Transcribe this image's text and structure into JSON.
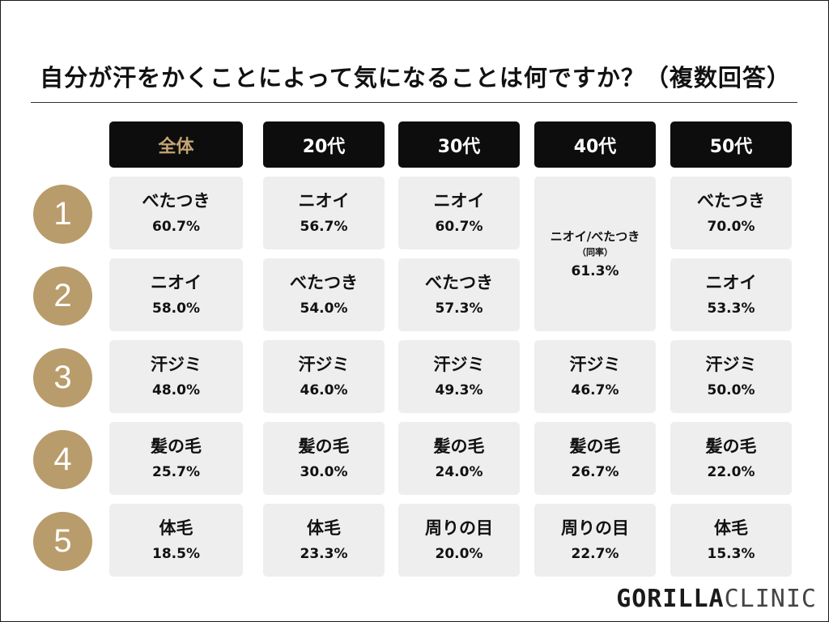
{
  "chart_data": {
    "type": "table",
    "title": "自分が汗をかくことによって気になることは何ですか？（複数回答）",
    "columns": [
      "全体",
      "20代",
      "30代",
      "40代",
      "50代"
    ],
    "ranks": [
      "1",
      "2",
      "3",
      "4",
      "5"
    ],
    "cells": [
      [
        {
          "label": "べたつき",
          "value": "60.7%"
        },
        {
          "label": "ニオイ",
          "value": "56.7%"
        },
        {
          "label": "ニオイ",
          "value": "60.7%"
        },
        {
          "label": "ニオイ/べたつき",
          "note": "（同率）",
          "value": "61.3%"
        },
        {
          "label": "べたつき",
          "value": "70.0%"
        }
      ],
      [
        {
          "label": "ニオイ",
          "value": "58.0%"
        },
        {
          "label": "べたつき",
          "value": "54.0%"
        },
        {
          "label": "べたつき",
          "value": "57.3%"
        },
        null,
        {
          "label": "ニオイ",
          "value": "53.3%"
        }
      ],
      [
        {
          "label": "汗ジミ",
          "value": "48.0%"
        },
        {
          "label": "汗ジミ",
          "value": "46.0%"
        },
        {
          "label": "汗ジミ",
          "value": "49.3%"
        },
        {
          "label": "汗ジミ",
          "value": "46.7%"
        },
        {
          "label": "汗ジミ",
          "value": "50.0%"
        }
      ],
      [
        {
          "label": "髪の毛",
          "value": "25.7%"
        },
        {
          "label": "髪の毛",
          "value": "30.0%"
        },
        {
          "label": "髪の毛",
          "value": "24.0%"
        },
        {
          "label": "髪の毛",
          "value": "26.7%"
        },
        {
          "label": "髪の毛",
          "value": "22.0%"
        }
      ],
      [
        {
          "label": "体毛",
          "value": "18.5%"
        },
        {
          "label": "体毛",
          "value": "23.3%"
        },
        {
          "label": "周りの目",
          "value": "20.0%"
        },
        {
          "label": "周りの目",
          "value": "22.7%"
        },
        {
          "label": "体毛",
          "value": "15.3%"
        }
      ]
    ]
  },
  "logo": {
    "bold": "GORILLA",
    "thin": "CLINIC"
  },
  "colors": {
    "rank_circle": "#b99c6b",
    "header_bg": "#0d0d0d",
    "header_accent": "#c4a574",
    "cell_bg": "#eeeeee"
  }
}
